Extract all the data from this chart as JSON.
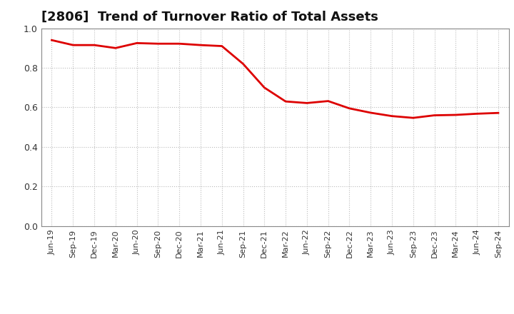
{
  "title": "[2806]  Trend of Turnover Ratio of Total Assets",
  "title_fontsize": 13,
  "line_color": "#dd0000",
  "line_width": 2.0,
  "background_color": "#ffffff",
  "grid_color": "#bbbbbb",
  "ylim": [
    0.0,
    1.0
  ],
  "yticks": [
    0.0,
    0.2,
    0.4,
    0.6,
    0.8,
    1.0
  ],
  "x_labels": [
    "Jun-19",
    "Sep-19",
    "Dec-19",
    "Mar-20",
    "Jun-20",
    "Sep-20",
    "Dec-20",
    "Mar-21",
    "Jun-21",
    "Sep-21",
    "Dec-21",
    "Mar-22",
    "Jun-22",
    "Sep-22",
    "Dec-22",
    "Mar-23",
    "Jun-23",
    "Sep-23",
    "Dec-23",
    "Mar-24",
    "Jun-24",
    "Sep-24"
  ],
  "values": [
    0.94,
    0.915,
    0.915,
    0.9,
    0.925,
    0.922,
    0.922,
    0.915,
    0.91,
    0.82,
    0.7,
    0.63,
    0.622,
    0.632,
    0.595,
    0.573,
    0.556,
    0.547,
    0.56,
    0.562,
    0.568,
    0.572
  ]
}
